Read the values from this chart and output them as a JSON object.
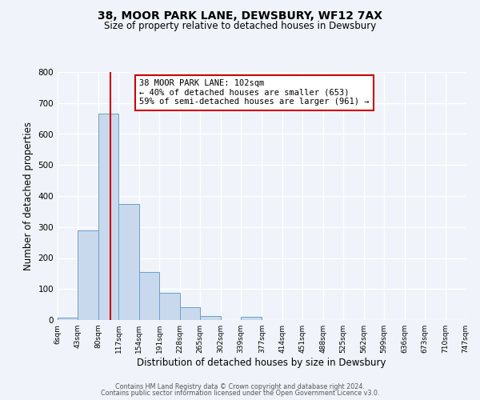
{
  "title": "38, MOOR PARK LANE, DEWSBURY, WF12 7AX",
  "subtitle": "Size of property relative to detached houses in Dewsbury",
  "xlabel": "Distribution of detached houses by size in Dewsbury",
  "ylabel": "Number of detached properties",
  "bar_color": "#c9d9ed",
  "bar_edge_color": "#6a9fc8",
  "background_color": "#f0f4fa",
  "grid_color": "#ffffff",
  "bin_edges": [
    6,
    43,
    80,
    117,
    154,
    191,
    228,
    265,
    302,
    339,
    377,
    414,
    451,
    488,
    525,
    562,
    599,
    636,
    673,
    710,
    747
  ],
  "bin_labels": [
    "6sqm",
    "43sqm",
    "80sqm",
    "117sqm",
    "154sqm",
    "191sqm",
    "228sqm",
    "265sqm",
    "302sqm",
    "339sqm",
    "377sqm",
    "414sqm",
    "451sqm",
    "488sqm",
    "525sqm",
    "562sqm",
    "599sqm",
    "636sqm",
    "673sqm",
    "710sqm",
    "747sqm"
  ],
  "bar_heights": [
    8,
    290,
    665,
    375,
    155,
    87,
    42,
    14,
    0,
    10,
    0,
    0,
    0,
    0,
    0,
    0,
    0,
    0,
    0,
    0
  ],
  "ylim": [
    0,
    800
  ],
  "yticks": [
    0,
    100,
    200,
    300,
    400,
    500,
    600,
    700,
    800
  ],
  "vline_x": 102,
  "vline_color": "#cc0000",
  "annotation_text": "38 MOOR PARK LANE: 102sqm\n← 40% of detached houses are smaller (653)\n59% of semi-detached houses are larger (961) →",
  "annotation_box_color": "#ffffff",
  "annotation_box_edge": "#cc0000",
  "footer_line1": "Contains HM Land Registry data © Crown copyright and database right 2024.",
  "footer_line2": "Contains public sector information licensed under the Open Government Licence v3.0."
}
